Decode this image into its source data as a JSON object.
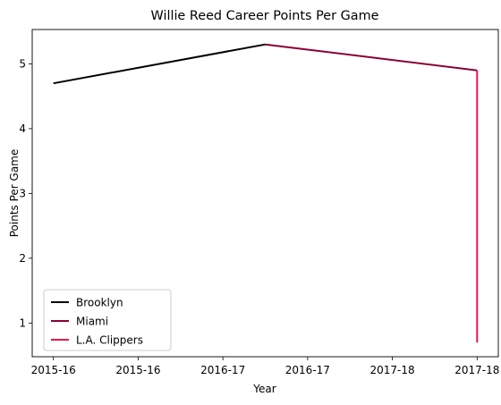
{
  "chart_data": {
    "type": "line",
    "title": "Willie Reed Career Points Per Game",
    "xlabel": "Year",
    "ylabel": "Points Per Game",
    "x_tick_labels": [
      "2015-16",
      "2015-16",
      "2016-17",
      "2016-17",
      "2017-18",
      "2017-18"
    ],
    "x_tick_positions": [
      0,
      0.4,
      0.8,
      1.2,
      1.6,
      2.0
    ],
    "y_ticks": [
      1,
      2,
      3,
      4,
      5
    ],
    "xlim": [
      -0.1,
      2.1
    ],
    "ylim": [
      0.48,
      5.53
    ],
    "grid": false,
    "legend_position": "lower left",
    "series": [
      {
        "name": "Brooklyn",
        "color": "#000000",
        "x": [
          0,
          1
        ],
        "y": [
          4.7,
          5.3
        ]
      },
      {
        "name": "Miami",
        "color": "#8B0036",
        "x": [
          1,
          2
        ],
        "y": [
          5.3,
          4.9
        ]
      },
      {
        "name": "L.A. Clippers",
        "color": "#E0194F",
        "x": [
          2,
          2
        ],
        "y": [
          4.9,
          0.7
        ]
      }
    ]
  }
}
